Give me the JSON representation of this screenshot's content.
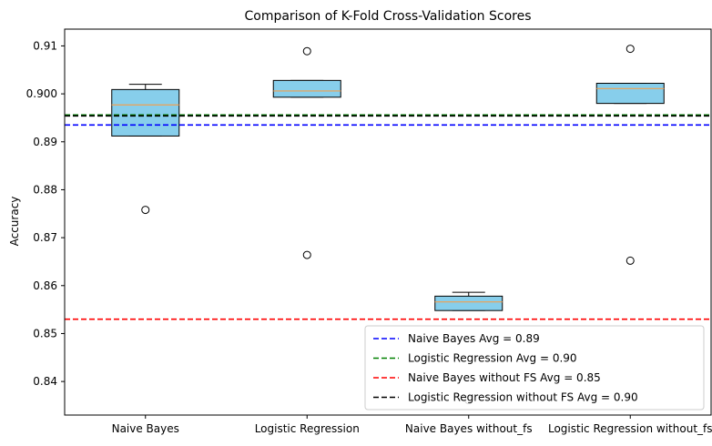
{
  "chart_data": {
    "type": "box",
    "title": "Comparison of K-Fold Cross-Validation Scores",
    "xlabel": "",
    "ylabel": "Accuracy",
    "ylim": [
      0.833,
      0.9135
    ],
    "yticks": [
      0.84,
      0.85,
      0.86,
      0.87,
      0.88,
      0.89,
      0.9,
      0.91
    ],
    "ytick_labels": [
      "0.84",
      "0.85",
      "0.86",
      "0.87",
      "0.88",
      "0.89",
      "0.900",
      "0.91"
    ],
    "grid": false,
    "legend_position": "lower-right",
    "categories": [
      "Naive Bayes",
      "Logistic Regression",
      "Naive Bayes without_fs",
      "Logistic Regression without_fs"
    ],
    "boxes": [
      {
        "whislo": 0.8912,
        "q1": 0.8912,
        "med": 0.8977,
        "q3": 0.9009,
        "whishi": 0.902,
        "fliers": [
          0.8758
        ]
      },
      {
        "whislo": 0.8993,
        "q1": 0.8993,
        "med": 0.9006,
        "q3": 0.9028,
        "whishi": 0.9028,
        "fliers": [
          0.9089,
          0.8664
        ]
      },
      {
        "whislo": 0.8548,
        "q1": 0.8548,
        "med": 0.8566,
        "q3": 0.8578,
        "whishi": 0.8586,
        "fliers": [
          0.8361
        ]
      },
      {
        "whislo": 0.898,
        "q1": 0.898,
        "med": 0.9011,
        "q3": 0.9022,
        "whishi": 0.9022,
        "fliers": [
          0.9094,
          0.8652
        ]
      }
    ],
    "reference_lines": [
      {
        "label": "Naive Bayes Avg = 0.89",
        "value": 0.8935,
        "color": "#0000ff"
      },
      {
        "label": "Logistic Regression Avg = 0.90",
        "value": 0.8956,
        "color": "#008000"
      },
      {
        "label": "Naive Bayes without FS Avg = 0.85",
        "value": 0.853,
        "color": "#ff0000"
      },
      {
        "label": "Logistic Regression without FS Avg = 0.90",
        "value": 0.8954,
        "color": "#000000"
      }
    ],
    "box_color": "#87ceeb",
    "median_color": "#f0a050"
  }
}
